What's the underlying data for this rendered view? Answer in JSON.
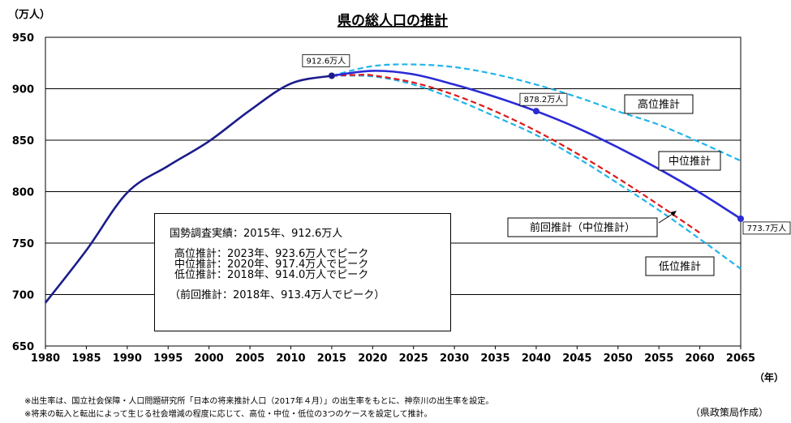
{
  "chart_data": {
    "type": "line",
    "title": "県の総人口の推計",
    "y_unit": "（万人）",
    "x_unit": "（年）",
    "xlim": [
      1980,
      2065
    ],
    "ylim": [
      650,
      950
    ],
    "x_ticks": [
      "1980",
      "1985",
      "1990",
      "1995",
      "2000",
      "2005",
      "2010",
      "2015",
      "2020",
      "2025",
      "2030",
      "2035",
      "2040",
      "2045",
      "2050",
      "2055",
      "2060",
      "2065"
    ],
    "y_ticks": [
      "650",
      "700",
      "750",
      "800",
      "850",
      "900",
      "950"
    ],
    "grid": true,
    "series": [
      {
        "name": "実績",
        "color": "#1c1c8a",
        "style": "solid",
        "x": [
          1980,
          1985,
          1990,
          1995,
          2000,
          2005,
          2010,
          2015
        ],
        "y": [
          692,
          743,
          799,
          825,
          849,
          879,
          905,
          912.6
        ]
      },
      {
        "name": "中位推計",
        "color": "#2a2ad6",
        "style": "solid",
        "x": [
          2015,
          2020,
          2025,
          2030,
          2035,
          2040,
          2045,
          2050,
          2055,
          2060,
          2065
        ],
        "y": [
          912.6,
          917.4,
          914,
          904,
          892,
          878.2,
          862,
          843,
          822,
          799,
          773.7
        ]
      },
      {
        "name": "高位推計",
        "color": "#20b4ea",
        "style": "dashed",
        "x": [
          2015,
          2020,
          2025,
          2030,
          2035,
          2040,
          2045,
          2050,
          2055,
          2060,
          2065
        ],
        "y": [
          912.6,
          922,
          923.6,
          921,
          914,
          904,
          892,
          878,
          865,
          848,
          830
        ]
      },
      {
        "name": "低位推計",
        "color": "#20b4ea",
        "style": "dashed",
        "x": [
          2015,
          2020,
          2025,
          2030,
          2035,
          2040,
          2045,
          2050,
          2055,
          2060,
          2065
        ],
        "y": [
          912.6,
          912,
          904,
          890,
          873,
          855,
          833,
          808,
          782,
          754,
          725
        ]
      },
      {
        "name": "前回推計（中位推計）",
        "color": "#e01818",
        "style": "dashed",
        "x": [
          2015,
          2018,
          2020,
          2025,
          2030,
          2035,
          2040,
          2045,
          2050,
          2055,
          2060
        ],
        "y": [
          912.6,
          913.4,
          913,
          906,
          894,
          878,
          859,
          837,
          813,
          787,
          760
        ]
      }
    ],
    "points": [
      {
        "x": 2015,
        "y": 912.6,
        "label": "912.6万人",
        "color": "#1c1c8a"
      },
      {
        "x": 2040,
        "y": 878.2,
        "label": "878.2万人",
        "color": "#2a2ad6"
      },
      {
        "x": 2065,
        "y": 773.7,
        "label": "773.7万人",
        "color": "#2a2ad6"
      }
    ],
    "series_labels": [
      "高位推計",
      "中位推計",
      "前回推計（中位推計）",
      "低位推計"
    ]
  },
  "infobox": {
    "line1": "国勢調査実績：2015年、912.6万人",
    "line2": "高位推計：2023年、923.6万人でピーク",
    "line3": "中位推計：2020年、917.4万人でピーク",
    "line4": "低位推計：2018年、914.0万人でピーク",
    "line5": "（前回推計：2018年、913.4万人でピーク）"
  },
  "notes": [
    "※出生率は、国立社会保障・人口問題研究所「日本の将来推計人口（2017年４月）」の出生率をもとに、神奈川の出生率を設定。",
    "※将来の転入と転出によって生じる社会増減の程度に応じて、高位・中位・低位の3つのケースを設定して推計。"
  ],
  "credit": "（県政策局作成）"
}
